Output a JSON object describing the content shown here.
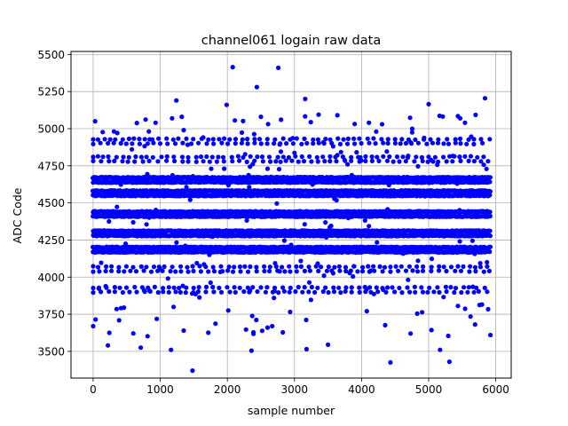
{
  "chart_data": {
    "type": "scatter",
    "title": "channel061 logain raw data",
    "xlabel": "sample number",
    "ylabel": "ADC Code",
    "xlim": [
      -330,
      6230
    ],
    "ylim": [
      3320,
      5520
    ],
    "x_ticks": [
      0,
      1000,
      2000,
      3000,
      4000,
      5000,
      6000
    ],
    "y_ticks": [
      3500,
      3750,
      4000,
      4250,
      4500,
      4750,
      5000,
      5250,
      5500
    ],
    "grid": true,
    "series": [
      {
        "name": "",
        "color": "#0000ff",
        "marker": "circle",
        "x_range": [
          0,
          5920
        ],
        "band_levels": [
          4170,
          4200,
          4280,
          4310,
          4410,
          4440,
          4550,
          4580,
          4640,
          4670
        ],
        "sparse_levels": [
          3900,
          3930,
          4040,
          4070,
          4780,
          4810,
          4900,
          4930
        ],
        "outliers": [
          {
            "x": 2080,
            "y": 5415
          },
          {
            "x": 2760,
            "y": 5410
          },
          {
            "x": 2440,
            "y": 5280
          },
          {
            "x": 5840,
            "y": 5205
          },
          {
            "x": 1240,
            "y": 5190
          },
          {
            "x": 3160,
            "y": 5200
          },
          {
            "x": 1990,
            "y": 5160
          },
          {
            "x": 5000,
            "y": 5165
          },
          {
            "x": 3640,
            "y": 5090
          },
          {
            "x": 2500,
            "y": 5080
          },
          {
            "x": 5470,
            "y": 5070
          },
          {
            "x": 30,
            "y": 5050
          },
          {
            "x": 930,
            "y": 5040
          },
          {
            "x": 4110,
            "y": 5040
          },
          {
            "x": 2800,
            "y": 5060
          },
          {
            "x": 1480,
            "y": 3370
          },
          {
            "x": 4430,
            "y": 3425
          },
          {
            "x": 5310,
            "y": 3430
          },
          {
            "x": 2360,
            "y": 3505
          },
          {
            "x": 1160,
            "y": 3510
          },
          {
            "x": 3180,
            "y": 3515
          },
          {
            "x": 220,
            "y": 3540
          },
          {
            "x": 3500,
            "y": 3545
          },
          {
            "x": 710,
            "y": 3525
          },
          {
            "x": 5170,
            "y": 3510
          },
          {
            "x": 0,
            "y": 3670
          },
          {
            "x": 5920,
            "y": 3610
          },
          {
            "x": 4730,
            "y": 3620
          },
          {
            "x": 1350,
            "y": 3640
          },
          {
            "x": 2600,
            "y": 3660
          }
        ]
      }
    ]
  }
}
